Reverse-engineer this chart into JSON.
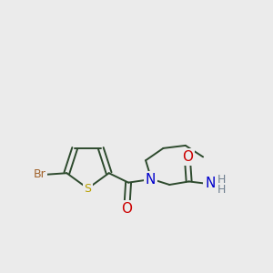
{
  "background_color": "#ebebeb",
  "bond_color": "#2d4a2d",
  "atom_colors": {
    "Br": "#a0622a",
    "S": "#b8a000",
    "N": "#0000cc",
    "O": "#cc0000",
    "H": "#708090"
  },
  "font_size": 10,
  "figsize": [
    3.0,
    3.0
  ],
  "dpi": 100
}
